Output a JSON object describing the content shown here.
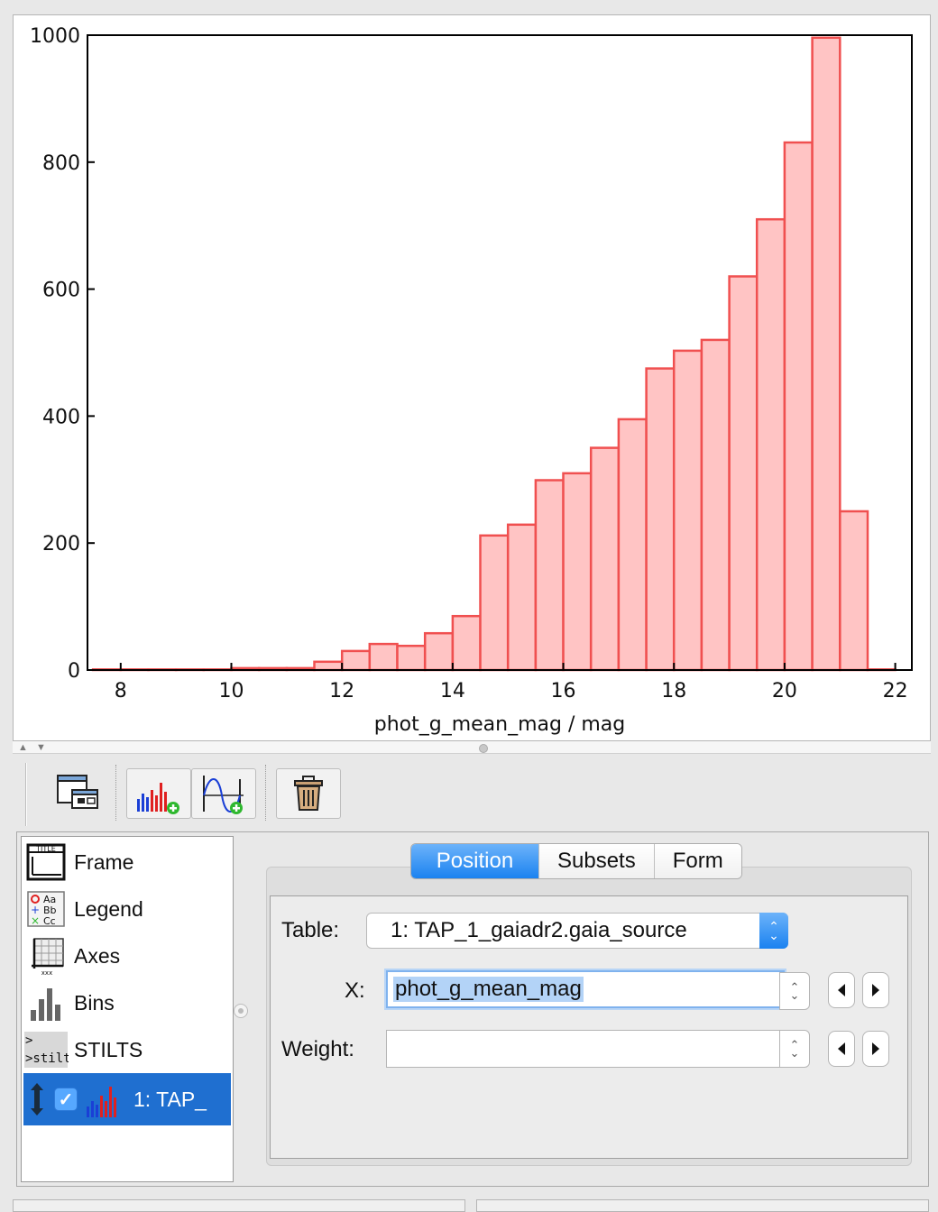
{
  "chart_data": {
    "type": "bar",
    "xlabel": "phot_g_mean_mag / mag",
    "ylabel": "",
    "xlim": [
      7.4,
      22.3
    ],
    "ylim": [
      0,
      1000
    ],
    "xticks": [
      8,
      10,
      12,
      14,
      16,
      18,
      20,
      22
    ],
    "yticks": [
      0,
      200,
      400,
      600,
      800,
      1000
    ],
    "bin_width": 0.5,
    "bins": [
      {
        "x0": 7.5,
        "x1": 8.0,
        "value": 1
      },
      {
        "x0": 8.0,
        "x1": 8.5,
        "value": 1
      },
      {
        "x0": 8.5,
        "x1": 9.0,
        "value": 1
      },
      {
        "x0": 9.0,
        "x1": 9.5,
        "value": 1
      },
      {
        "x0": 9.5,
        "x1": 10.0,
        "value": 1
      },
      {
        "x0": 10.0,
        "x1": 10.5,
        "value": 3
      },
      {
        "x0": 10.5,
        "x1": 11.0,
        "value": 3
      },
      {
        "x0": 11.0,
        "x1": 11.5,
        "value": 3
      },
      {
        "x0": 11.5,
        "x1": 12.0,
        "value": 13
      },
      {
        "x0": 12.0,
        "x1": 12.5,
        "value": 30
      },
      {
        "x0": 12.5,
        "x1": 13.0,
        "value": 41
      },
      {
        "x0": 13.0,
        "x1": 13.5,
        "value": 38
      },
      {
        "x0": 13.5,
        "x1": 14.0,
        "value": 58
      },
      {
        "x0": 14.0,
        "x1": 14.5,
        "value": 85
      },
      {
        "x0": 14.5,
        "x1": 15.0,
        "value": 212
      },
      {
        "x0": 15.0,
        "x1": 15.5,
        "value": 229
      },
      {
        "x0": 15.5,
        "x1": 16.0,
        "value": 299
      },
      {
        "x0": 16.0,
        "x1": 16.5,
        "value": 310
      },
      {
        "x0": 16.5,
        "x1": 17.0,
        "value": 350
      },
      {
        "x0": 17.0,
        "x1": 17.5,
        "value": 395
      },
      {
        "x0": 17.5,
        "x1": 18.0,
        "value": 475
      },
      {
        "x0": 18.0,
        "x1": 18.5,
        "value": 503
      },
      {
        "x0": 18.5,
        "x1": 19.0,
        "value": 520
      },
      {
        "x0": 19.0,
        "x1": 19.5,
        "value": 620
      },
      {
        "x0": 19.5,
        "x1": 20.0,
        "value": 710
      },
      {
        "x0": 20.0,
        "x1": 20.5,
        "value": 831
      },
      {
        "x0": 20.5,
        "x1": 21.0,
        "value": 996
      },
      {
        "x0": 21.0,
        "x1": 21.5,
        "value": 250
      },
      {
        "x0": 21.5,
        "x1": 22.0,
        "value": 1
      }
    ],
    "bar_fill": "#ffc4c4",
    "bar_stroke": "#f05050",
    "grid": false
  },
  "toolbar": {
    "buttons": [
      {
        "name": "add-window-button",
        "icon": "window-frame-icon"
      },
      {
        "name": "add-histogram-layer-button",
        "icon": "histogram-add-icon"
      },
      {
        "name": "add-function-layer-button",
        "icon": "function-add-icon"
      },
      {
        "name": "delete-layer-button",
        "icon": "trash-icon"
      }
    ]
  },
  "controls": {
    "items": [
      {
        "label": "Frame",
        "icon": "frame-title-icon"
      },
      {
        "label": "Legend",
        "icon": "legend-icon"
      },
      {
        "label": "Axes",
        "icon": "axes-grid-icon"
      },
      {
        "label": "Bins",
        "icon": "bins-icon"
      },
      {
        "label": "STILTS",
        "icon": "stilts-icon"
      }
    ],
    "layer": {
      "label": "1: TAP_",
      "checked": true
    }
  },
  "tabs": {
    "items": [
      "Position",
      "Subsets",
      "Form"
    ],
    "active": "Position"
  },
  "form": {
    "table_label": "Table:",
    "table_value": "1: TAP_1_gaiadr2.gaia_source",
    "x_label": "X:",
    "x_value": "phot_g_mean_mag",
    "weight_label": "Weight:",
    "weight_value": ""
  },
  "colors": {
    "accent": "#1b82f0",
    "selection": "#1f6fd0"
  }
}
